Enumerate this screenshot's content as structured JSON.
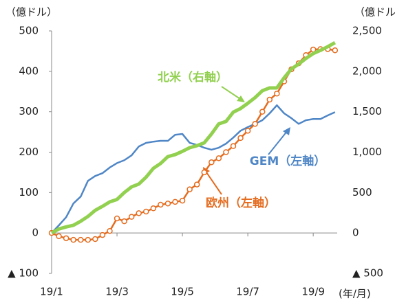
{
  "chart_data": {
    "type": "line",
    "ylabel": "（億ドル）",
    "y2label": "（億ドル）",
    "xlabel": "(年/月)",
    "categories": [
      "19/1",
      null,
      null,
      null,
      null,
      null,
      null,
      null,
      null,
      "19/3",
      null,
      null,
      null,
      null,
      null,
      null,
      null,
      null,
      "19/5",
      null,
      null,
      null,
      null,
      null,
      null,
      null,
      null,
      "19/7",
      null,
      null,
      null,
      null,
      null,
      null,
      null,
      null,
      "19/9",
      null,
      null,
      null
    ],
    "ylim": [
      -100,
      500
    ],
    "yticks": [
      {
        "value": -100,
        "label": "▲ 100"
      },
      0,
      100,
      200,
      300,
      400,
      500
    ],
    "y2lim": [
      -500,
      2500
    ],
    "y2ticks": [
      {
        "value": -500,
        "label": "▲ 500"
      },
      0,
      500,
      {
        "value": 1000,
        "label": "1,000"
      },
      {
        "value": 1500,
        "label": "1,500"
      },
      {
        "value": 2000,
        "label": "2,000"
      },
      {
        "value": 2500,
        "label": "2,500"
      }
    ],
    "series": [
      {
        "name": "GEM（左軸）",
        "color": "#4f86c6",
        "axis": "y",
        "marker": "none",
        "values": [
          0,
          19,
          39,
          73,
          90,
          129,
          141,
          148,
          162,
          173,
          180,
          192,
          214,
          223,
          226,
          228,
          228,
          243,
          245,
          223,
          218,
          211,
          206,
          211,
          221,
          236,
          253,
          262,
          270,
          279,
          296,
          316,
          296,
          284,
          270,
          279,
          282,
          282,
          291,
          299
        ]
      },
      {
        "name": "欧州（左軸）",
        "color": "#e46c1f",
        "axis": "y",
        "marker": "circle",
        "values": [
          0,
          -8,
          -13,
          -17,
          -17,
          -17,
          -15,
          -5,
          5,
          36,
          29,
          40,
          49,
          53,
          61,
          70,
          73,
          77,
          80,
          108,
          120,
          150,
          175,
          185,
          200,
          215,
          235,
          253,
          270,
          300,
          330,
          345,
          375,
          405,
          420,
          440,
          454,
          455,
          455,
          452
        ]
      },
      {
        "name": "北米（右軸）",
        "color": "#92d050",
        "axis": "y2",
        "marker": "none",
        "values": [
          0,
          50,
          75,
          95,
          145,
          205,
          280,
          330,
          385,
          415,
          500,
          570,
          605,
          690,
          800,
          860,
          945,
          970,
          1010,
          1055,
          1080,
          1115,
          1225,
          1350,
          1380,
          1495,
          1540,
          1605,
          1675,
          1760,
          1795,
          1795,
          1920,
          2030,
          2090,
          2160,
          2220,
          2260,
          2305,
          2355
        ]
      }
    ]
  }
}
